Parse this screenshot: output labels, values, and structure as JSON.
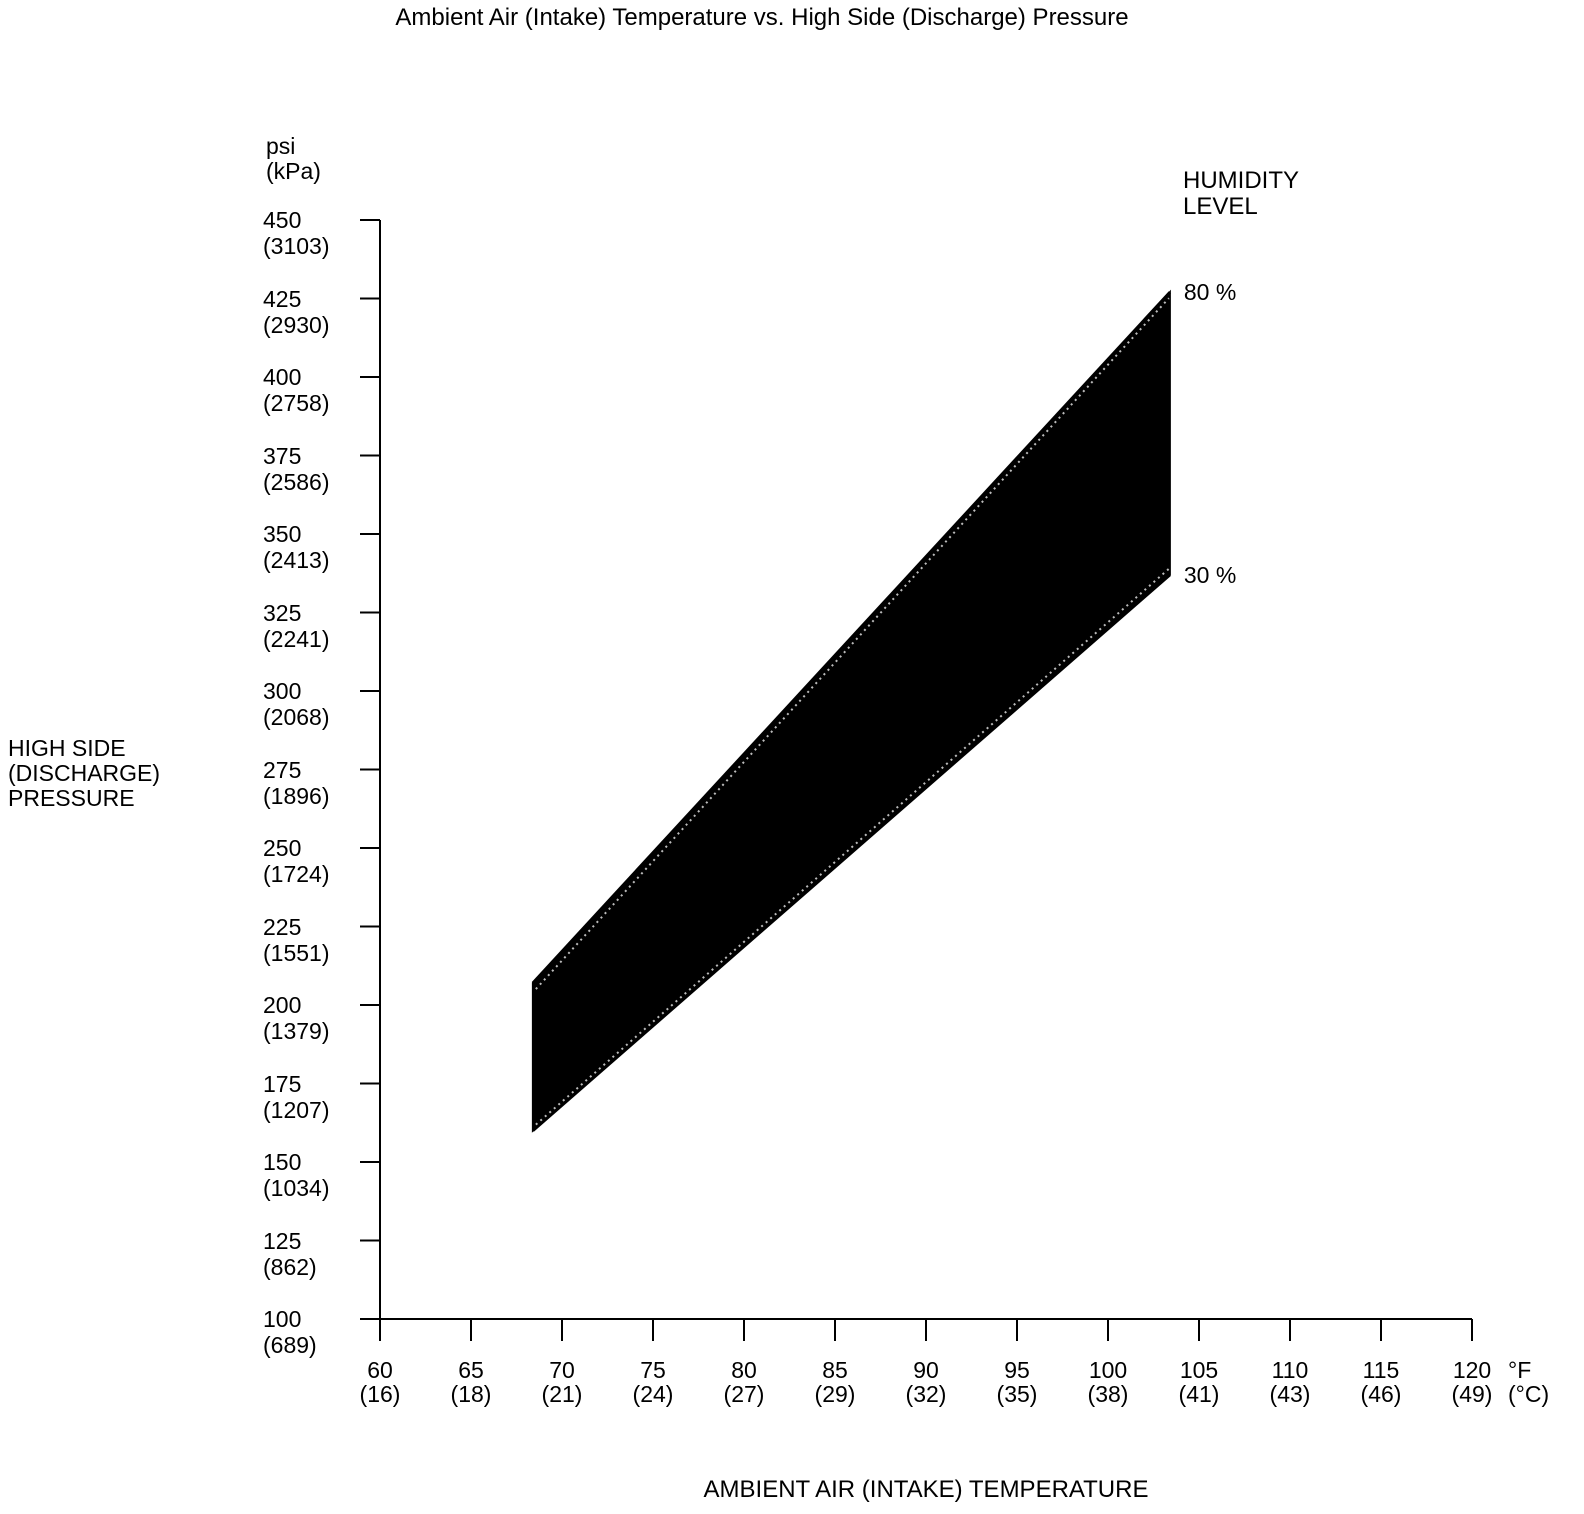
{
  "page": {
    "background": "#ffffff",
    "text_color": "#000000"
  },
  "chart_data": {
    "type": "area",
    "title": "Ambient Air (Intake) Temperature vs. High Side (Discharge) Pressure",
    "xlabel": "AMBIENT AIR (INTAKE) TEMPERATURE",
    "ylabel_lines": [
      "HIGH SIDE",
      "(DISCHARGE)",
      "PRESSURE"
    ],
    "y_unit_lines": [
      "psi",
      "(kPa)"
    ],
    "x_unit_lines": [
      "°F",
      "(°C)"
    ],
    "xlim": [
      60,
      120
    ],
    "ylim": [
      100,
      450
    ],
    "grid": false,
    "legend_position": "top-right",
    "legend_title_lines": [
      "HUMIDITY",
      "LEVEL"
    ],
    "axis_color": "#000000",
    "band_fill": "#000000",
    "x_ticks": [
      {
        "f": 60,
        "c": 16
      },
      {
        "f": 65,
        "c": 18
      },
      {
        "f": 70,
        "c": 21
      },
      {
        "f": 75,
        "c": 24
      },
      {
        "f": 80,
        "c": 27
      },
      {
        "f": 85,
        "c": 29
      },
      {
        "f": 90,
        "c": 32
      },
      {
        "f": 95,
        "c": 35
      },
      {
        "f": 100,
        "c": 38
      },
      {
        "f": 105,
        "c": 41
      },
      {
        "f": 110,
        "c": 43
      },
      {
        "f": 115,
        "c": 46
      },
      {
        "f": 120,
        "c": 49
      }
    ],
    "y_ticks": [
      {
        "psi": 450,
        "kpa": 3103
      },
      {
        "psi": 425,
        "kpa": 2930
      },
      {
        "psi": 400,
        "kpa": 2758
      },
      {
        "psi": 375,
        "kpa": 2586
      },
      {
        "psi": 350,
        "kpa": 2413
      },
      {
        "psi": 325,
        "kpa": 2241
      },
      {
        "psi": 300,
        "kpa": 2068
      },
      {
        "psi": 275,
        "kpa": 1896
      },
      {
        "psi": 250,
        "kpa": 1724
      },
      {
        "psi": 225,
        "kpa": 1551
      },
      {
        "psi": 200,
        "kpa": 1379
      },
      {
        "psi": 175,
        "kpa": 1207
      },
      {
        "psi": 150,
        "kpa": 1034
      },
      {
        "psi": 125,
        "kpa": 862
      },
      {
        "psi": 100,
        "kpa": 689
      }
    ],
    "series": [
      {
        "name": "80 %",
        "humidity_percent": 80,
        "x": [
          68.4,
          103.4
        ],
        "y": [
          207,
          427
        ]
      },
      {
        "name": "30 %",
        "humidity_percent": 30,
        "x": [
          68.4,
          103.4
        ],
        "y": [
          160,
          337
        ]
      }
    ]
  }
}
